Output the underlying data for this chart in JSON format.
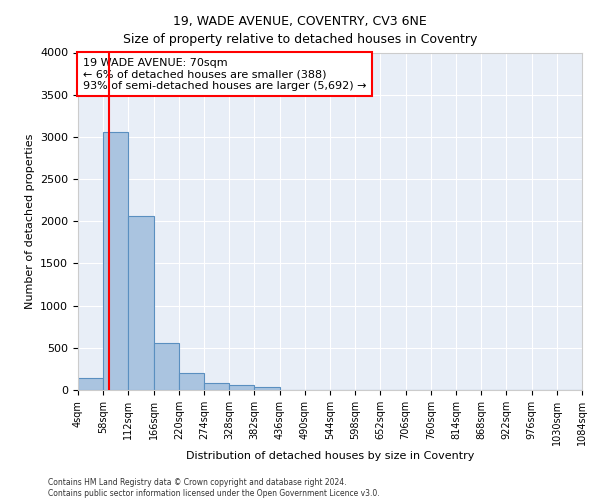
{
  "title": "19, WADE AVENUE, COVENTRY, CV3 6NE",
  "subtitle": "Size of property relative to detached houses in Coventry",
  "xlabel": "Distribution of detached houses by size in Coventry",
  "ylabel": "Number of detached properties",
  "bin_edges": [
    4,
    58,
    112,
    166,
    220,
    274,
    328,
    382,
    436,
    490,
    544,
    598,
    652,
    706,
    760,
    814,
    868,
    922,
    976,
    1030,
    1084
  ],
  "bar_heights": [
    140,
    3060,
    2060,
    560,
    200,
    80,
    55,
    40,
    0,
    0,
    0,
    0,
    0,
    0,
    0,
    0,
    0,
    0,
    0,
    0
  ],
  "bar_color": "#aac4e0",
  "bar_edge_color": "#5a8fc0",
  "property_size": 70,
  "annotation_line1": "19 WADE AVENUE: 70sqm",
  "annotation_line2": "← 6% of detached houses are smaller (388)",
  "annotation_line3": "93% of semi-detached houses are larger (5,692) →",
  "annotation_box_color": "white",
  "annotation_box_edgecolor": "red",
  "ylim": [
    0,
    4000
  ],
  "yticks": [
    0,
    500,
    1000,
    1500,
    2000,
    2500,
    3000,
    3500,
    4000
  ],
  "bg_color": "#e8eef7",
  "grid_color": "white",
  "footer_line1": "Contains HM Land Registry data © Crown copyright and database right 2024.",
  "footer_line2": "Contains public sector information licensed under the Open Government Licence v3.0.",
  "property_line_color": "red",
  "title_fontsize": 9,
  "subtitle_fontsize": 9
}
